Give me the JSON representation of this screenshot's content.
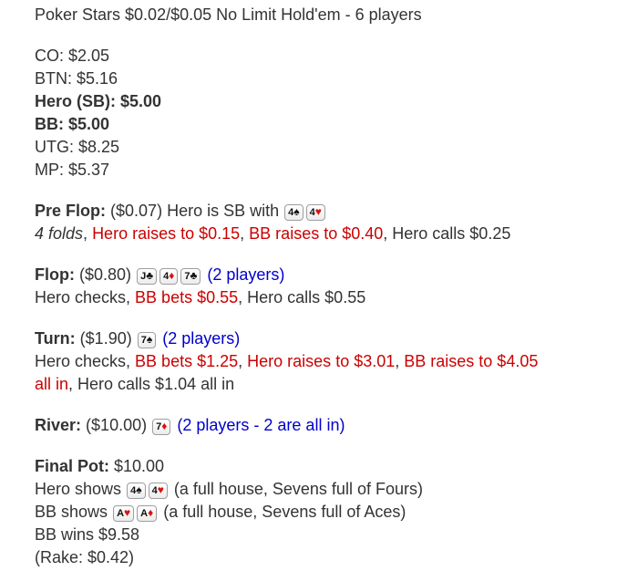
{
  "colors": {
    "text": "#333333",
    "action_red": "#cc0000",
    "players_blue": "#0000cc",
    "suit_red": "#dd1111",
    "suit_black": "#111111",
    "card_border": "#9e9e9e",
    "background": "#ffffff"
  },
  "title": "Poker Stars $0.02/$0.05 No Limit Hold'em - 6 players",
  "seats": [
    {
      "text": "CO: $2.05"
    },
    {
      "text": "BTN: $5.16"
    },
    {
      "text": "Hero (SB): $5.00"
    },
    {
      "text": "BB: $5.00"
    },
    {
      "text": "UTG: $8.25"
    },
    {
      "text": "MP: $5.37"
    }
  ],
  "preflop": {
    "label": "Pre Flop:",
    "pot": "($0.07)",
    "lead": "Hero is SB with",
    "cards": [
      {
        "rank": "4",
        "suit": "♠"
      },
      {
        "rank": "4",
        "suit": "♥"
      }
    ],
    "actions": [
      {
        "text": "4 folds",
        "style": "italic"
      },
      {
        "text": ", ",
        "style": "plain"
      },
      {
        "text": "Hero raises to $0.15",
        "style": "red"
      },
      {
        "text": ", ",
        "style": "plain"
      },
      {
        "text": "BB raises to $0.40",
        "style": "red"
      },
      {
        "text": ", Hero calls $0.25",
        "style": "plain"
      }
    ]
  },
  "flop": {
    "label": "Flop:",
    "pot": "($0.80)",
    "cards": [
      {
        "rank": "J",
        "suit": "♣"
      },
      {
        "rank": "4",
        "suit": "♦"
      },
      {
        "rank": "7",
        "suit": "♣"
      }
    ],
    "players": "(2 players)",
    "actions": [
      {
        "text": "Hero checks, ",
        "style": "plain"
      },
      {
        "text": "BB bets $0.55",
        "style": "red"
      },
      {
        "text": ", Hero calls $0.55",
        "style": "plain"
      }
    ]
  },
  "turn": {
    "label": "Turn:",
    "pot": "($1.90)",
    "cards": [
      {
        "rank": "7",
        "suit": "♠"
      }
    ],
    "players": "(2 players)",
    "actions": [
      {
        "text": "Hero checks, ",
        "style": "plain"
      },
      {
        "text": "BB bets $1.25",
        "style": "red"
      },
      {
        "text": ", ",
        "style": "plain"
      },
      {
        "text": "Hero raises to $3.01",
        "style": "red"
      },
      {
        "text": ", ",
        "style": "plain"
      },
      {
        "text": "BB raises to $4.05",
        "style": "red"
      },
      {
        "text": "all in",
        "style": "red"
      },
      {
        "text": ", Hero calls $1.04 all in",
        "style": "plain"
      }
    ]
  },
  "river": {
    "label": "River:",
    "pot": "($10.00)",
    "cards": [
      {
        "rank": "7",
        "suit": "♦"
      }
    ],
    "players": "(2 players - 2 are all in)"
  },
  "summary": {
    "final_pot_label": "Final Pot:",
    "final_pot_amount": "$10.00",
    "hero_shows_lead": "Hero shows",
    "hero_shows_cards": [
      {
        "rank": "4",
        "suit": "♠"
      },
      {
        "rank": "4",
        "suit": "♥"
      }
    ],
    "hero_shows_result": "(a full house, Sevens full of Fours)",
    "bb_shows_lead": "BB shows",
    "bb_shows_cards": [
      {
        "rank": "A",
        "suit": "♥"
      },
      {
        "rank": "A",
        "suit": "♦"
      }
    ],
    "bb_shows_result": "(a full house, Sevens full of Aces)",
    "winner": "BB wins $9.58",
    "rake": "(Rake: $0.42)"
  }
}
